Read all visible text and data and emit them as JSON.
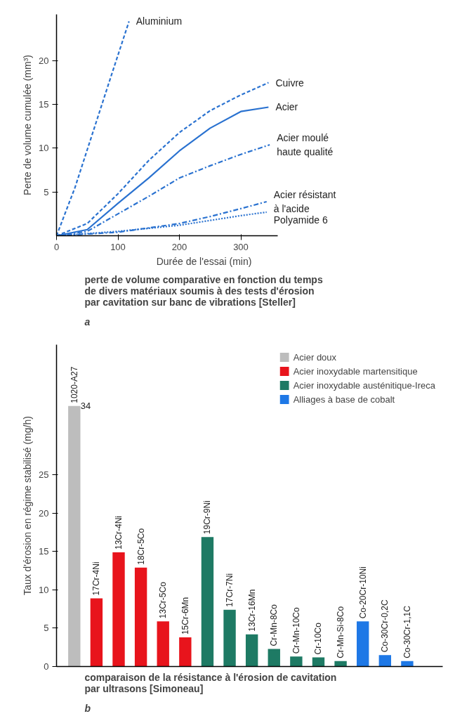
{
  "chart_data": [
    {
      "type": "line",
      "title": "perte de volume comparative en fonction du temps\nde divers matériaux soumis à des tests d'érosion\npar cavitation sur banc de vibrations [Steller]",
      "annotations": [
        "a"
      ],
      "xlabel": "Durée de l'essai (min)",
      "ylabel": "Perte de volume cumulée (mm³)",
      "xlim": [
        0,
        360
      ],
      "ylim": [
        0,
        25.3
      ],
      "xticks": [
        0,
        100,
        200,
        300
      ],
      "yticks": [
        5,
        10,
        15,
        20
      ],
      "grid": false,
      "legend": false,
      "marker": "none",
      "series": [
        {
          "name": "Aluminium",
          "color": "#2a72d0",
          "line_style": "dashed",
          "x": [
            0,
            30,
            60,
            90,
            118
          ],
          "values": [
            0,
            5.5,
            12,
            18.5,
            24.5
          ]
        },
        {
          "name": "Cuivre",
          "color": "#2a72d0",
          "line_style": "dashed",
          "x": [
            0,
            50,
            100,
            150,
            200,
            250,
            300,
            345
          ],
          "values": [
            0,
            1.4,
            4.8,
            8.6,
            11.8,
            14.3,
            16.1,
            17.5
          ]
        },
        {
          "name": "Acier",
          "color": "#2a72d0",
          "line_style": "solid",
          "x": [
            0,
            50,
            100,
            150,
            200,
            250,
            300,
            345
          ],
          "values": [
            0,
            0.7,
            3.7,
            6.6,
            9.7,
            12.3,
            14.2,
            14.7
          ]
        },
        {
          "name": "Acier moulé\nhaute qualité",
          "color": "#2a72d0",
          "line_style": "dashdot",
          "x": [
            0,
            50,
            100,
            150,
            200,
            250,
            300,
            347
          ],
          "values": [
            0,
            0.5,
            2.5,
            4.5,
            6.6,
            8.0,
            9.3,
            10.4
          ]
        },
        {
          "name": "Acier résistant\nà l'acide",
          "color": "#2a72d0",
          "line_style": "dashdot",
          "x": [
            0,
            100,
            200,
            250,
            300,
            342
          ],
          "values": [
            0,
            0.4,
            1.4,
            2.2,
            3.1,
            3.9
          ]
        },
        {
          "name": "Polyamide 6",
          "color": "#2a72d0",
          "line_style": "dotted",
          "x": [
            0,
            100,
            200,
            300,
            342
          ],
          "values": [
            0,
            0.5,
            1.2,
            2.3,
            2.7
          ]
        }
      ]
    },
    {
      "type": "bar",
      "title": "comparaison de la résistance à l'érosion de cavitation\npar ultrasons [Simoneau]",
      "annotations": [
        "b"
      ],
      "ylabel": "Taux d'érosion en régime stabilisé (mg/h)",
      "ylim": [
        0,
        42
      ],
      "yticks": [
        0,
        5,
        10,
        15,
        20,
        25
      ],
      "grid": false,
      "legend": "top right",
      "categories": [
        "1020-A27",
        "17Cr-4Ni",
        "13Cr-4Ni",
        "18Cr-5Co",
        "13Cr-5Co",
        "15Cr-6Mn",
        "19Cr-9Ni",
        "17Cr-7Ni",
        "13Cr-16Mn",
        "Cr-Mn-8Co",
        "Cr-Mn-10Co",
        "Cr-10Co",
        "Cr-Mn-Si-8Co",
        "Co-20Cr-10Ni",
        "Co-30Cr-0,2C",
        "Co-30Cr-1,1C"
      ],
      "value_labels": [
        "34",
        null,
        null,
        null,
        null,
        null,
        null,
        null,
        null,
        null,
        null,
        null,
        null,
        null,
        null,
        null
      ],
      "series": [
        {
          "name": "Acier doux",
          "color": "#bdbdbd",
          "values": [
            34,
            null,
            null,
            null,
            null,
            null,
            null,
            null,
            null,
            null,
            null,
            null,
            null,
            null,
            null,
            null
          ]
        },
        {
          "name": "Acier inoxydable martensitique",
          "color": "#e8141c",
          "values": [
            null,
            8.9,
            14.9,
            12.9,
            5.9,
            3.8,
            null,
            null,
            null,
            null,
            null,
            null,
            null,
            null,
            null,
            null
          ]
        },
        {
          "name": "Acier inoxydable austénitique-Ireca",
          "color": "#1e7a64",
          "values": [
            null,
            null,
            null,
            null,
            null,
            null,
            16.9,
            7.4,
            4.2,
            2.3,
            1.3,
            1.2,
            0.7,
            null,
            null,
            null
          ]
        },
        {
          "name": "Alliages à base de cobalt",
          "color": "#1e78e6",
          "values": [
            null,
            null,
            null,
            null,
            null,
            null,
            null,
            null,
            null,
            null,
            null,
            null,
            null,
            5.9,
            1.5,
            0.7
          ]
        }
      ]
    }
  ]
}
